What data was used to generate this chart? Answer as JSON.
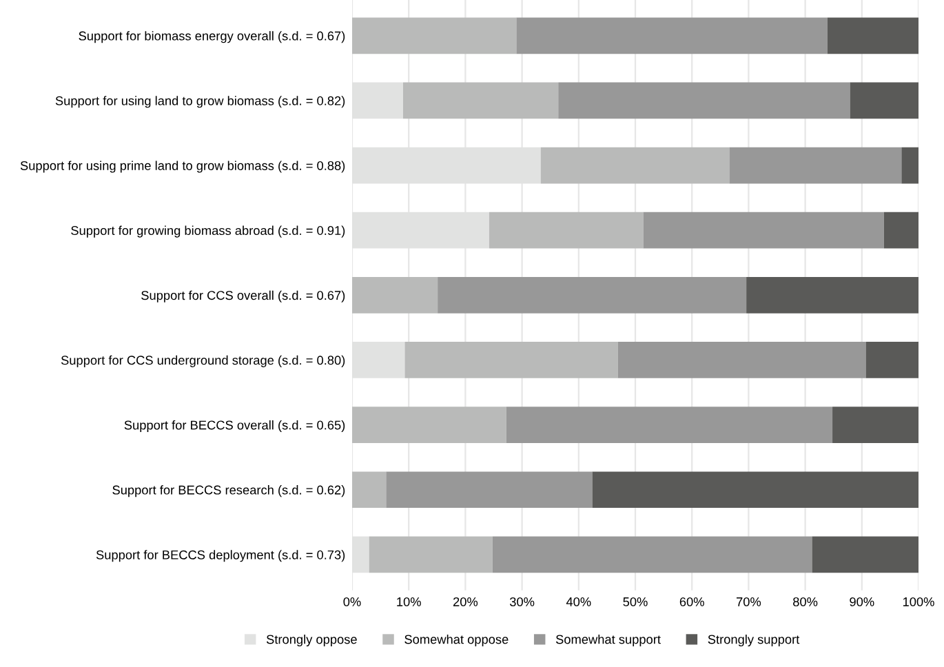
{
  "chart_data": {
    "type": "bar",
    "orientation": "horizontal",
    "stacked": true,
    "categories": [
      "Support for biomass energy overall (s.d. = 0.67)",
      "Support for using land to grow biomass (s.d. = 0.82)",
      "Support for using prime land to grow biomass (s.d. = 0.88)",
      "Support for growing biomass abroad (s.d. = 0.91)",
      "Support for CCS overall (s.d. = 0.67)",
      "Support for CCS underground storage (s.d. = 0.80)",
      "Support for BECCS overall (s.d. = 0.65)",
      "Support for BECCS research (s.d. = 0.62)",
      "Support for BECCS deployment (s.d. = 0.73)"
    ],
    "series": [
      {
        "name": "Strongly oppose",
        "color": "#e1e2e1",
        "values": [
          0,
          9.0,
          33.3,
          24.2,
          0,
          9.3,
          0,
          0,
          3.0
        ]
      },
      {
        "name": "Somewhat oppose",
        "color": "#b9bab9",
        "values": [
          29.0,
          27.4,
          33.3,
          27.2,
          15.1,
          37.6,
          27.2,
          6.0,
          21.8
        ]
      },
      {
        "name": "Somewhat support",
        "color": "#989898",
        "values": [
          54.9,
          51.5,
          30.4,
          42.5,
          54.5,
          43.8,
          57.6,
          36.4,
          56.4
        ]
      },
      {
        "name": "Strongly support",
        "color": "#5a5a58",
        "values": [
          16.1,
          12.1,
          3.0,
          6.1,
          30.4,
          9.3,
          15.2,
          57.6,
          18.8
        ]
      }
    ],
    "xlim": [
      0,
      100
    ],
    "xticks": [
      {
        "value": 0,
        "label": "0%"
      },
      {
        "value": 10,
        "label": "10%"
      },
      {
        "value": 20,
        "label": "20%"
      },
      {
        "value": 30,
        "label": "30%"
      },
      {
        "value": 40,
        "label": "40%"
      },
      {
        "value": 50,
        "label": "50%"
      },
      {
        "value": 60,
        "label": "60%"
      },
      {
        "value": 70,
        "label": "70%"
      },
      {
        "value": 80,
        "label": "80%"
      },
      {
        "value": 90,
        "label": "90%"
      },
      {
        "value": 100,
        "label": "100%"
      }
    ],
    "grid": "x",
    "legend": "bottom"
  }
}
